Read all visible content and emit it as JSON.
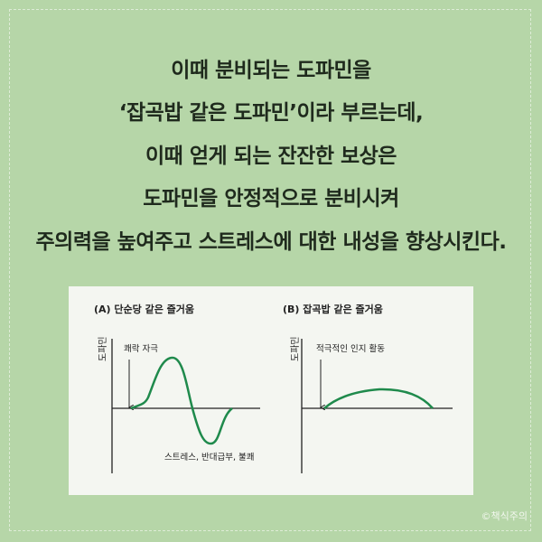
{
  "headline": [
    "이때 분비되는 도파민을",
    "‘잡곡밥 같은 도파민’이라 부르는데,",
    "이때 얻게 되는 잔잔한 보상은",
    "도파민을 안정적으로 분비시켜",
    "주의력을 높여주고 스트레스에 대한 내성을 향상시킨다."
  ],
  "figure": {
    "panel_a": {
      "title": "(A) 단순당 같은 즐거움",
      "ylabel": "도파민",
      "arrow_label": "쾌락 자극",
      "dip_label": "스트레스, 반대급부, 불쾌"
    },
    "panel_b": {
      "title": "(B) 잡곡밥 같은 즐거움",
      "ylabel": "도파민",
      "arrow_label": "적극적인 인지 활동"
    },
    "curve_color": "#1f8a4c"
  },
  "credit": "©책식주의",
  "colors": {
    "background": "#b6d6a8",
    "panel": "#f4f6f1",
    "text": "#1f2a1d"
  }
}
